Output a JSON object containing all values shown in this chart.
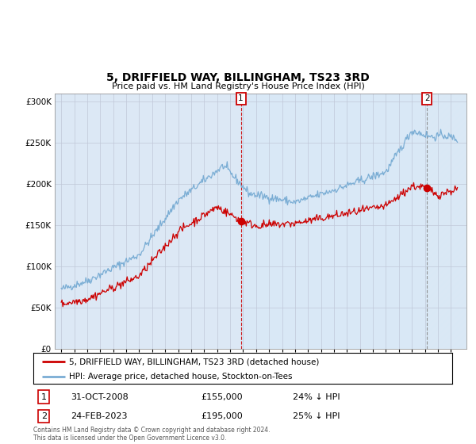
{
  "title": "5, DRIFFIELD WAY, BILLINGHAM, TS23 3RD",
  "subtitle": "Price paid vs. HM Land Registry's House Price Index (HPI)",
  "legend_line1": "5, DRIFFIELD WAY, BILLINGHAM, TS23 3RD (detached house)",
  "legend_line2": "HPI: Average price, detached house, Stockton-on-Tees",
  "footnote": "Contains HM Land Registry data © Crown copyright and database right 2024.\nThis data is licensed under the Open Government Licence v3.0.",
  "sale1_label": "1",
  "sale1_date": "31-OCT-2008",
  "sale1_price": "£155,000",
  "sale1_hpi": "24% ↓ HPI",
  "sale2_label": "2",
  "sale2_date": "24-FEB-2023",
  "sale2_price": "£195,000",
  "sale2_hpi": "25% ↓ HPI",
  "hpi_color": "#7aadd4",
  "price_color": "#cc0000",
  "sale1_x": 2008.83,
  "sale1_y": 155000,
  "sale2_x": 2023.15,
  "sale2_y": 195000,
  "ylim": [
    0,
    310000
  ],
  "xlim_start": 1994.5,
  "xlim_end": 2026.2,
  "background_color": "#dce8f5",
  "plot_bg": "#ffffff",
  "grid_color": "#c0c8d8",
  "shade_color": "#d8e8f8",
  "hatch_color": "#c0cce0"
}
